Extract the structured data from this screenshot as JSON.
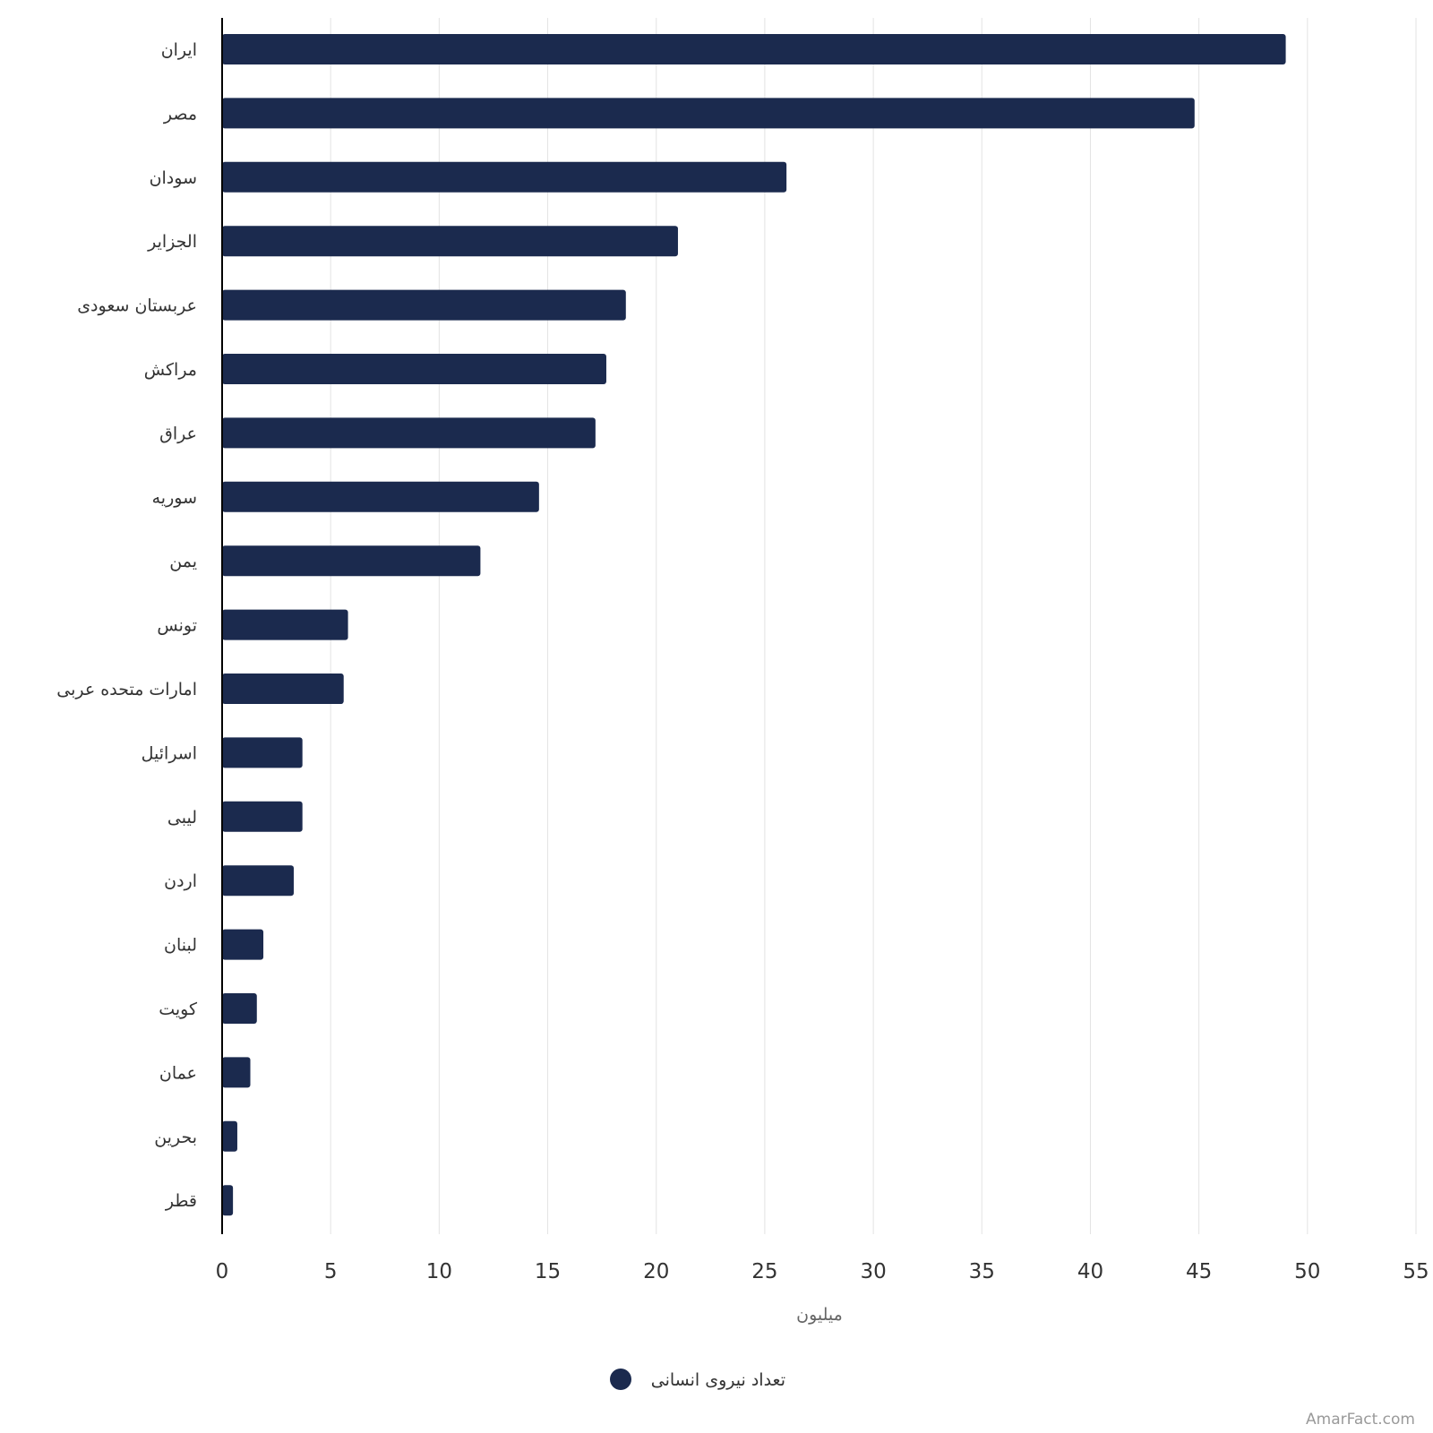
{
  "chart_data": {
    "type": "bar",
    "orientation": "horizontal",
    "categories": [
      "ایران",
      "مصر",
      "سودان",
      "الجزایر",
      "عربستان سعودی",
      "مراکش",
      "عراق",
      "سوریه",
      "یمن",
      "تونس",
      "امارات متحده عربی",
      "اسرائیل",
      "لیبی",
      "اردن",
      "لبنان",
      "کویت",
      "عمان",
      "بحرین",
      "قطر"
    ],
    "series": [
      {
        "name": "تعداد نیروی انسانی",
        "color": "#1b2a4e",
        "values": [
          49,
          44.8,
          26,
          21,
          18.6,
          17.7,
          17.2,
          14.6,
          11.9,
          5.8,
          5.6,
          3.7,
          3.7,
          3.3,
          1.9,
          1.6,
          1.3,
          0.7,
          0.5
        ]
      }
    ],
    "xlim": [
      0,
      55
    ],
    "xticks": [
      0,
      5,
      10,
      15,
      20,
      25,
      30,
      35,
      40,
      45,
      50,
      55
    ],
    "xlabel": "میلیون",
    "ylabel": "",
    "title": "",
    "grid": true,
    "legend_position": "bottom-center"
  },
  "watermark": "AmarFact.com"
}
